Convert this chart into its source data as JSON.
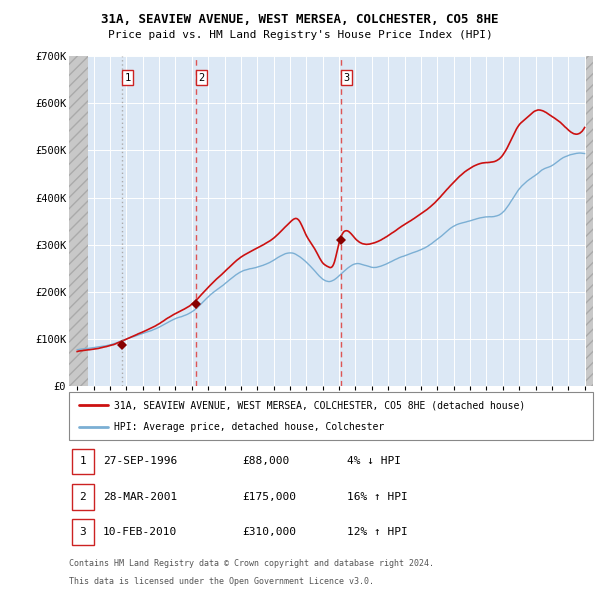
{
  "title_line1": "31A, SEAVIEW AVENUE, WEST MERSEA, COLCHESTER, CO5 8HE",
  "title_line2": "Price paid vs. HM Land Registry's House Price Index (HPI)",
  "ylim": [
    0,
    700000
  ],
  "yticks": [
    0,
    100000,
    200000,
    300000,
    400000,
    500000,
    600000,
    700000
  ],
  "ytick_labels": [
    "£0",
    "£100K",
    "£200K",
    "£300K",
    "£400K",
    "£500K",
    "£600K",
    "£700K"
  ],
  "xlim_start": 1993.5,
  "xlim_end": 2025.5,
  "sale_dates": [
    1996.74,
    2001.24,
    2010.11
  ],
  "sale_prices": [
    88000,
    175000,
    310000
  ],
  "sale_labels": [
    "1",
    "2",
    "3"
  ],
  "hpi_color": "#7bafd4",
  "price_color": "#cc1111",
  "marker_color": "#880000",
  "vline1_color": "#aaaaaa",
  "vline2_color": "#dd4444",
  "bg_color": "#dce8f5",
  "hatch_bg": "#d0d0d0",
  "legend_label_price": "31A, SEAVIEW AVENUE, WEST MERSEA, COLCHESTER, CO5 8HE (detached house)",
  "legend_label_hpi": "HPI: Average price, detached house, Colchester",
  "table_entries": [
    {
      "num": "1",
      "date": "27-SEP-1996",
      "price": "£88,000",
      "pct": "4% ↓ HPI"
    },
    {
      "num": "2",
      "date": "28-MAR-2001",
      "price": "£175,000",
      "pct": "16% ↑ HPI"
    },
    {
      "num": "3",
      "date": "10-FEB-2010",
      "price": "£310,000",
      "pct": "12% ↑ HPI"
    }
  ],
  "footnote_line1": "Contains HM Land Registry data © Crown copyright and database right 2024.",
  "footnote_line2": "This data is licensed under the Open Government Licence v3.0."
}
